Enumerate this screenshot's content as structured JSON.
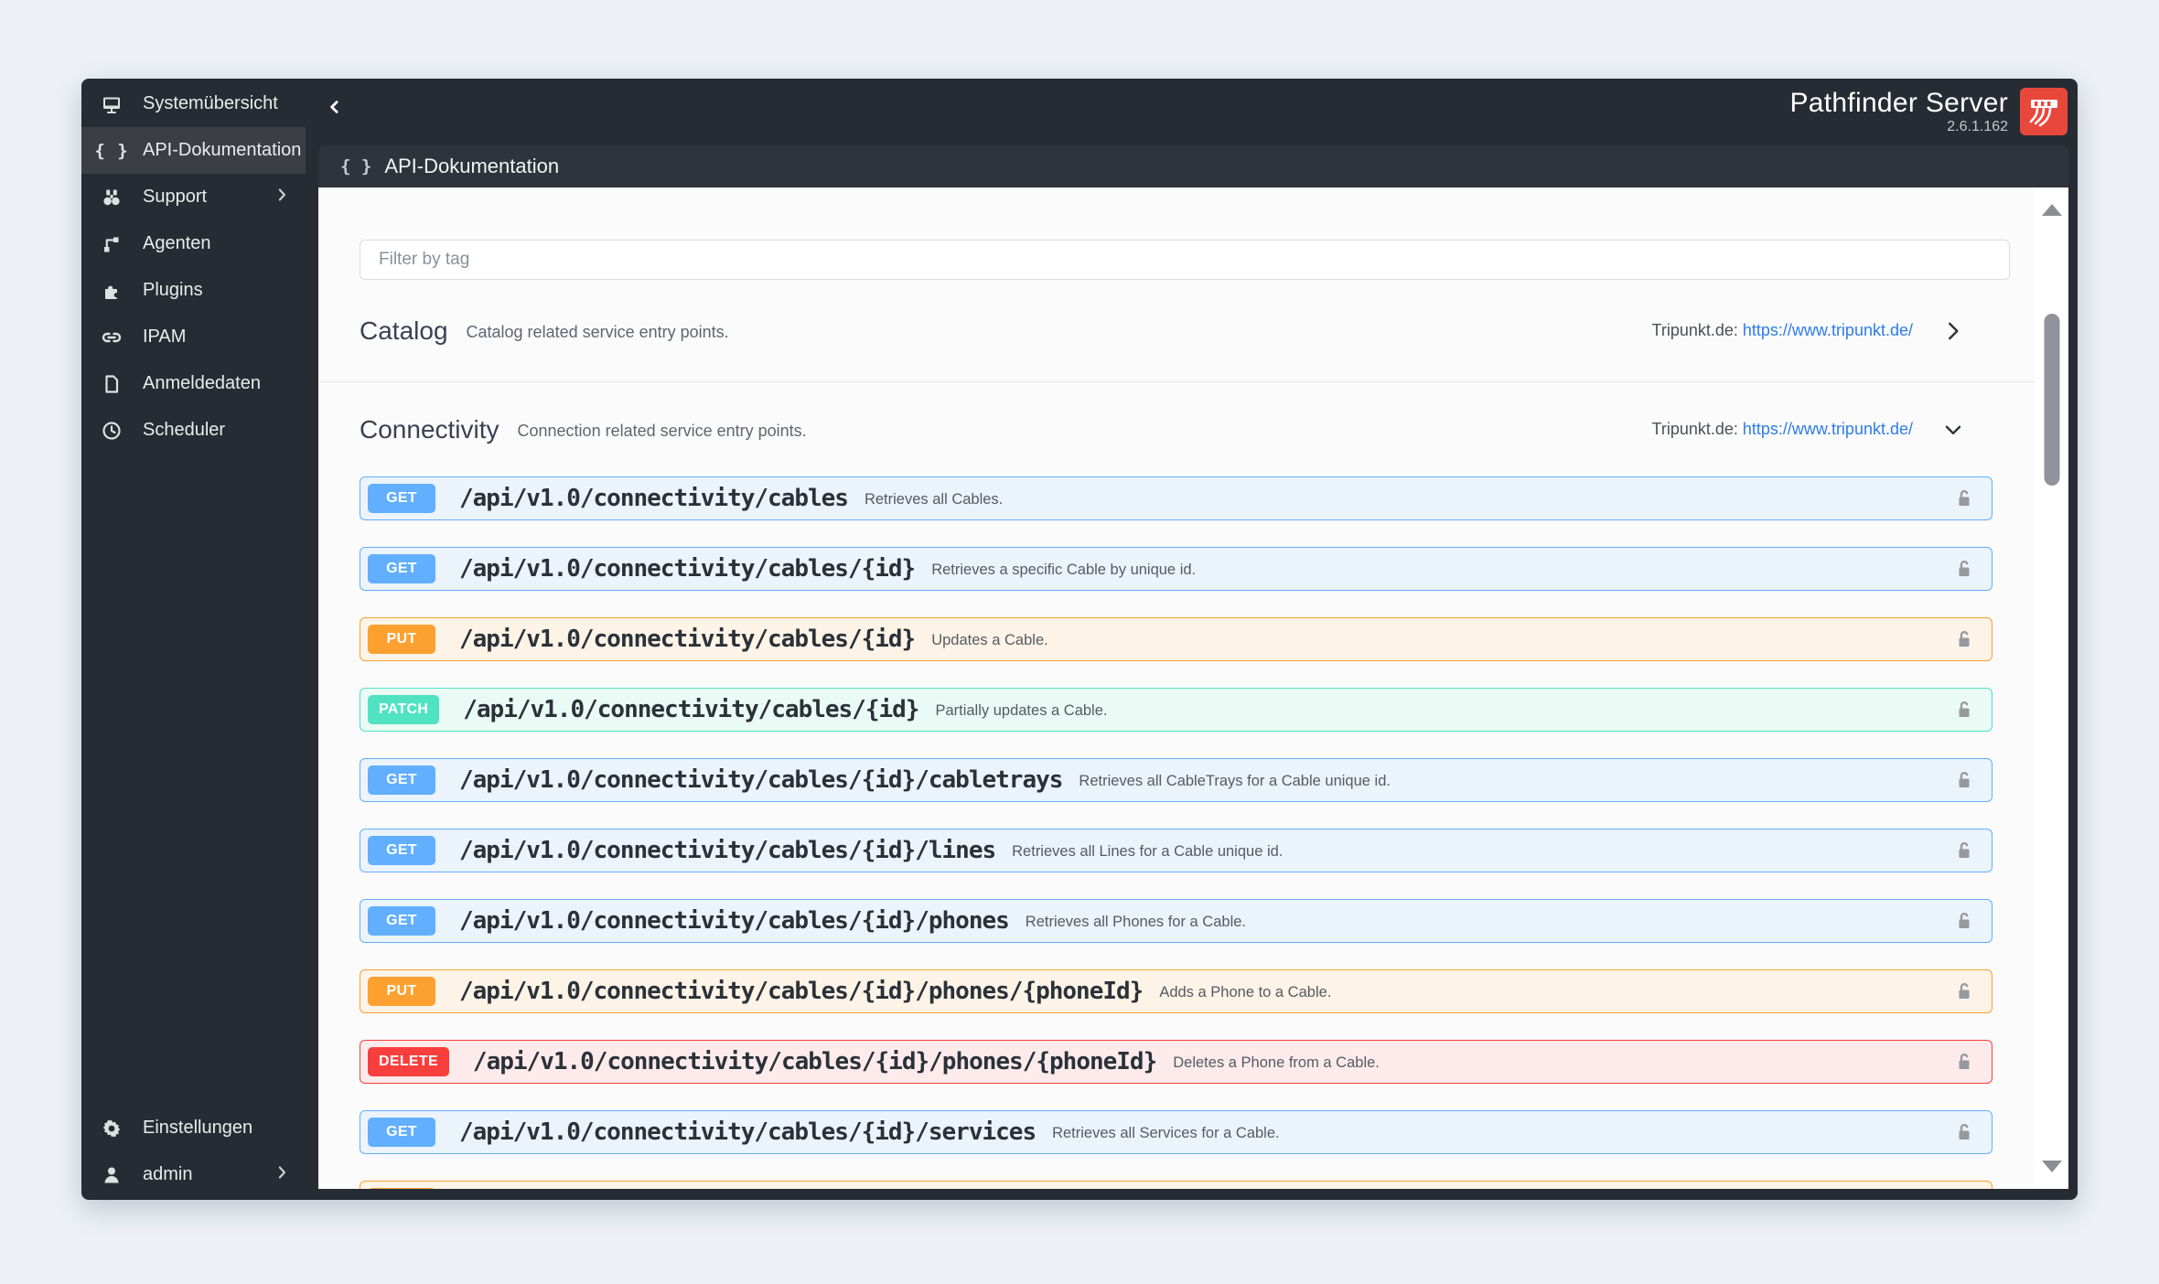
{
  "app": {
    "title": "Pathfinder Server",
    "version": "2.6.1.162",
    "logo_icon": "patch-panel-logo-icon",
    "logo_color": "#e8483c"
  },
  "header": {
    "collapse_icon": "chevron-left-icon"
  },
  "sidebar": {
    "items": [
      {
        "label": "Systemübersicht",
        "icon": "monitor-icon",
        "active": false,
        "chevron": false
      },
      {
        "label": "API-Dokumentation",
        "icon": "braces-icon",
        "active": true,
        "chevron": false
      },
      {
        "label": "Support",
        "icon": "binoculars-icon",
        "active": false,
        "chevron": true
      },
      {
        "label": "Agenten",
        "icon": "agent-node-icon",
        "active": false,
        "chevron": false
      },
      {
        "label": "Plugins",
        "icon": "puzzle-icon",
        "active": false,
        "chevron": false
      },
      {
        "label": "IPAM",
        "icon": "link-icon",
        "active": false,
        "chevron": false
      },
      {
        "label": "Anmeldedaten",
        "icon": "document-icon",
        "active": false,
        "chevron": false
      },
      {
        "label": "Scheduler",
        "icon": "clock-icon",
        "active": false,
        "chevron": false
      }
    ],
    "bottom_items": [
      {
        "label": "Einstellungen",
        "icon": "gear-icon",
        "active": false,
        "chevron": false
      },
      {
        "label": "admin",
        "icon": "user-icon",
        "active": false,
        "chevron": true
      }
    ]
  },
  "subheader": {
    "title": "API-Dokumentation",
    "icon": "braces-icon"
  },
  "filter": {
    "placeholder": "Filter by tag",
    "value": ""
  },
  "sections": [
    {
      "name": "Catalog",
      "description": "Catalog related service entry points.",
      "link_label": "Tripunkt.de:",
      "link_text": "https://www.tripunkt.de/",
      "expanded": false,
      "chevron_icon": "chevron-right-icon"
    },
    {
      "name": "Connectivity",
      "description": "Connection related service entry points.",
      "link_label": "Tripunkt.de:",
      "link_text": "https://www.tripunkt.de/",
      "expanded": true,
      "chevron_icon": "chevron-down-icon"
    }
  ],
  "endpoints": [
    {
      "method": "GET",
      "path": "/api/v1.0/connectivity/cables",
      "description": "Retrieves all Cables.",
      "lock_icon": "unlock-icon"
    },
    {
      "method": "GET",
      "path": "/api/v1.0/connectivity/cables/{id}",
      "description": "Retrieves a specific Cable by unique id.",
      "lock_icon": "unlock-icon"
    },
    {
      "method": "PUT",
      "path": "/api/v1.0/connectivity/cables/{id}",
      "description": "Updates a Cable.",
      "lock_icon": "unlock-icon"
    },
    {
      "method": "PATCH",
      "path": "/api/v1.0/connectivity/cables/{id}",
      "description": "Partially updates a Cable.",
      "lock_icon": "unlock-icon"
    },
    {
      "method": "GET",
      "path": "/api/v1.0/connectivity/cables/{id}/cabletrays",
      "description": "Retrieves all CableTrays for a Cable unique id.",
      "lock_icon": "unlock-icon"
    },
    {
      "method": "GET",
      "path": "/api/v1.0/connectivity/cables/{id}/lines",
      "description": "Retrieves all Lines for a Cable unique id.",
      "lock_icon": "unlock-icon"
    },
    {
      "method": "GET",
      "path": "/api/v1.0/connectivity/cables/{id}/phones",
      "description": "Retrieves all Phones for a Cable.",
      "lock_icon": "unlock-icon"
    },
    {
      "method": "PUT",
      "path": "/api/v1.0/connectivity/cables/{id}/phones/{phoneId}",
      "description": "Adds a Phone to a Cable.",
      "lock_icon": "unlock-icon"
    },
    {
      "method": "DELETE",
      "path": "/api/v1.0/connectivity/cables/{id}/phones/{phoneId}",
      "description": "Deletes a Phone from a Cable.",
      "lock_icon": "unlock-icon"
    },
    {
      "method": "GET",
      "path": "/api/v1.0/connectivity/cables/{id}/services",
      "description": "Retrieves all Services for a Cable.",
      "lock_icon": "unlock-icon"
    },
    {
      "method": "PUT",
      "path": "",
      "description": "",
      "partial": true
    }
  ],
  "scrollbar": {
    "up_icon": "scroll-up-arrow-icon",
    "down_icon": "scroll-down-arrow-icon"
  },
  "colors": {
    "frame": "#272c34",
    "subheader": "#2e333c",
    "sidebar_active": "#3b3f45",
    "get": "#61affe",
    "put": "#fca130",
    "patch": "#50e3c2",
    "delete": "#f93e3e",
    "link": "#2e7ce9",
    "logo": "#e8483c"
  }
}
